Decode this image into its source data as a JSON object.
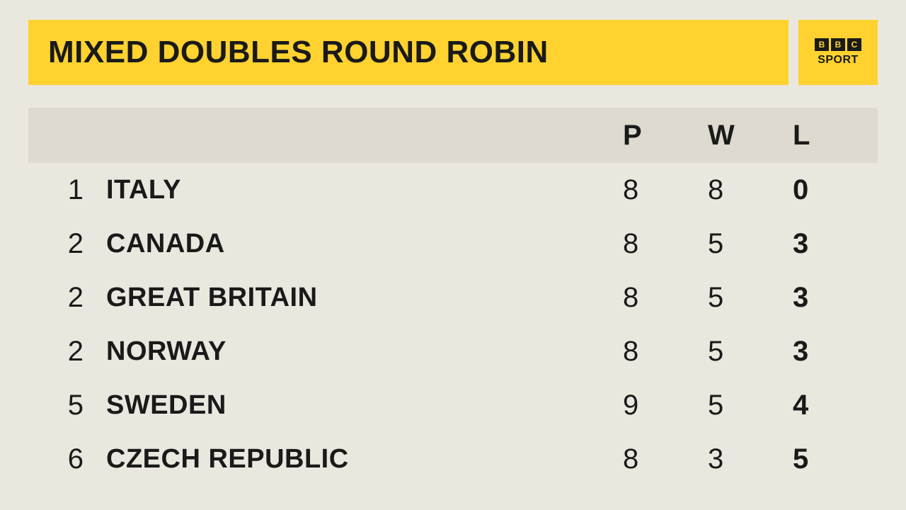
{
  "title": "MIXED DOUBLES ROUND ROBIN",
  "logo": {
    "b1": "B",
    "b2": "B",
    "b3": "C",
    "sport": "SPORT"
  },
  "columns": {
    "p": "P",
    "w": "W",
    "l": "L"
  },
  "rows": [
    {
      "rank": "1",
      "country": "ITALY",
      "p": "8",
      "w": "8",
      "l": "0"
    },
    {
      "rank": "2",
      "country": "CANADA",
      "p": "8",
      "w": "5",
      "l": "3"
    },
    {
      "rank": "2",
      "country": "GREAT BRITAIN",
      "p": "8",
      "w": "5",
      "l": "3"
    },
    {
      "rank": "2",
      "country": "NORWAY",
      "p": "8",
      "w": "5",
      "l": "3"
    },
    {
      "rank": "5",
      "country": "SWEDEN",
      "p": "9",
      "w": "5",
      "l": "4"
    },
    {
      "rank": "6",
      "country": "CZECH REPUBLIC",
      "p": "8",
      "w": "3",
      "l": "5"
    }
  ],
  "style": {
    "bg": "#eae7df",
    "accent": "#ffd230",
    "head_row_bg": "#dedad0",
    "text": "#1a1a1a",
    "title_fontsize": 44,
    "body_fontsize": 40
  }
}
